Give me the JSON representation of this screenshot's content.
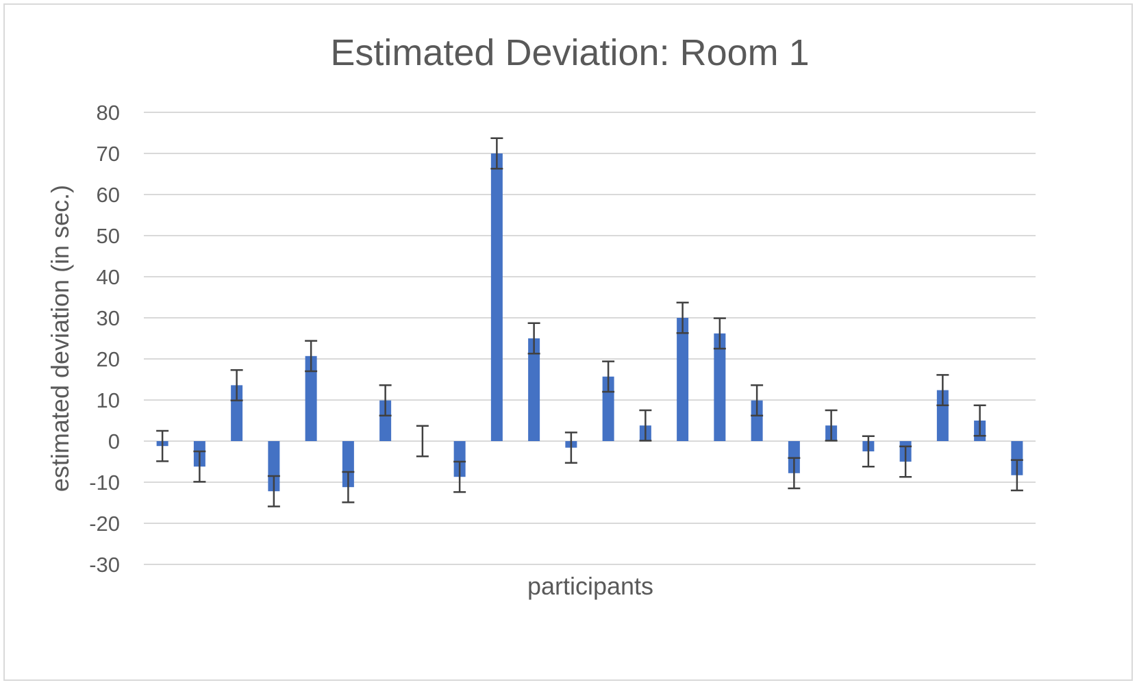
{
  "chart_data": {
    "type": "bar",
    "title": "Estimated Deviation: Room 1",
    "xlabel": "participants",
    "ylabel": "estimated deviation (in sec.)",
    "ylim": [
      -30,
      80
    ],
    "yticks": [
      80,
      70,
      60,
      50,
      40,
      30,
      20,
      10,
      0,
      -10,
      -20,
      -30
    ],
    "grid": true,
    "legend": "none",
    "series": [
      {
        "color": "#4472c4",
        "values": [
          -1.2,
          -6.2,
          13.6,
          -12.2,
          20.7,
          -11.2,
          9.9,
          0,
          -8.7,
          70.0,
          25.0,
          -1.6,
          15.7,
          3.8,
          30.0,
          26.2,
          9.9,
          -7.8,
          3.8,
          -2.5,
          -5.0,
          12.4,
          5.0,
          -8.3
        ],
        "error": 3.7
      }
    ],
    "error_bar_color": "#404040",
    "grid_color": "#d9d9d9"
  }
}
